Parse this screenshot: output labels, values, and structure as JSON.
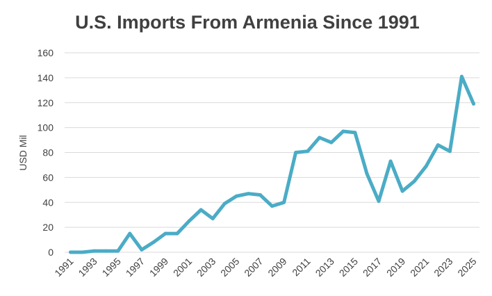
{
  "chart_data": {
    "type": "line",
    "title": "U.S. Imports From Armenia Since 1991",
    "xlabel": "",
    "ylabel": "USD Mil",
    "ylim": [
      0,
      160
    ],
    "yticks": [
      0,
      20,
      40,
      60,
      80,
      100,
      120,
      140,
      160
    ],
    "xticks": [
      "1991",
      "1993",
      "1995",
      "1997",
      "1999",
      "2001",
      "2003",
      "2005",
      "2007",
      "2009",
      "2011",
      "2013",
      "2015",
      "2017",
      "2019",
      "2021",
      "2023",
      "2025"
    ],
    "grid": true,
    "line_color": "#4bacc6",
    "series": [
      {
        "x": [
          1991,
          1992,
          1993,
          1994,
          1995,
          1996,
          1997,
          1998,
          1999,
          2000,
          2001,
          2002,
          2003,
          2004,
          2005,
          2006,
          2007,
          2008,
          2009,
          2010,
          2011,
          2012,
          2013,
          2014,
          2015,
          2016,
          2017,
          2018,
          2019,
          2020,
          2021,
          2022,
          2023,
          2024,
          2025
        ],
        "values": [
          0,
          0,
          1,
          1,
          1,
          15,
          2,
          8,
          15,
          15,
          25,
          34,
          27,
          39,
          45,
          47,
          46,
          37,
          40,
          80,
          81,
          92,
          88,
          97,
          96,
          63,
          41,
          73,
          49,
          57,
          69,
          86,
          81,
          141,
          119
        ]
      }
    ]
  }
}
